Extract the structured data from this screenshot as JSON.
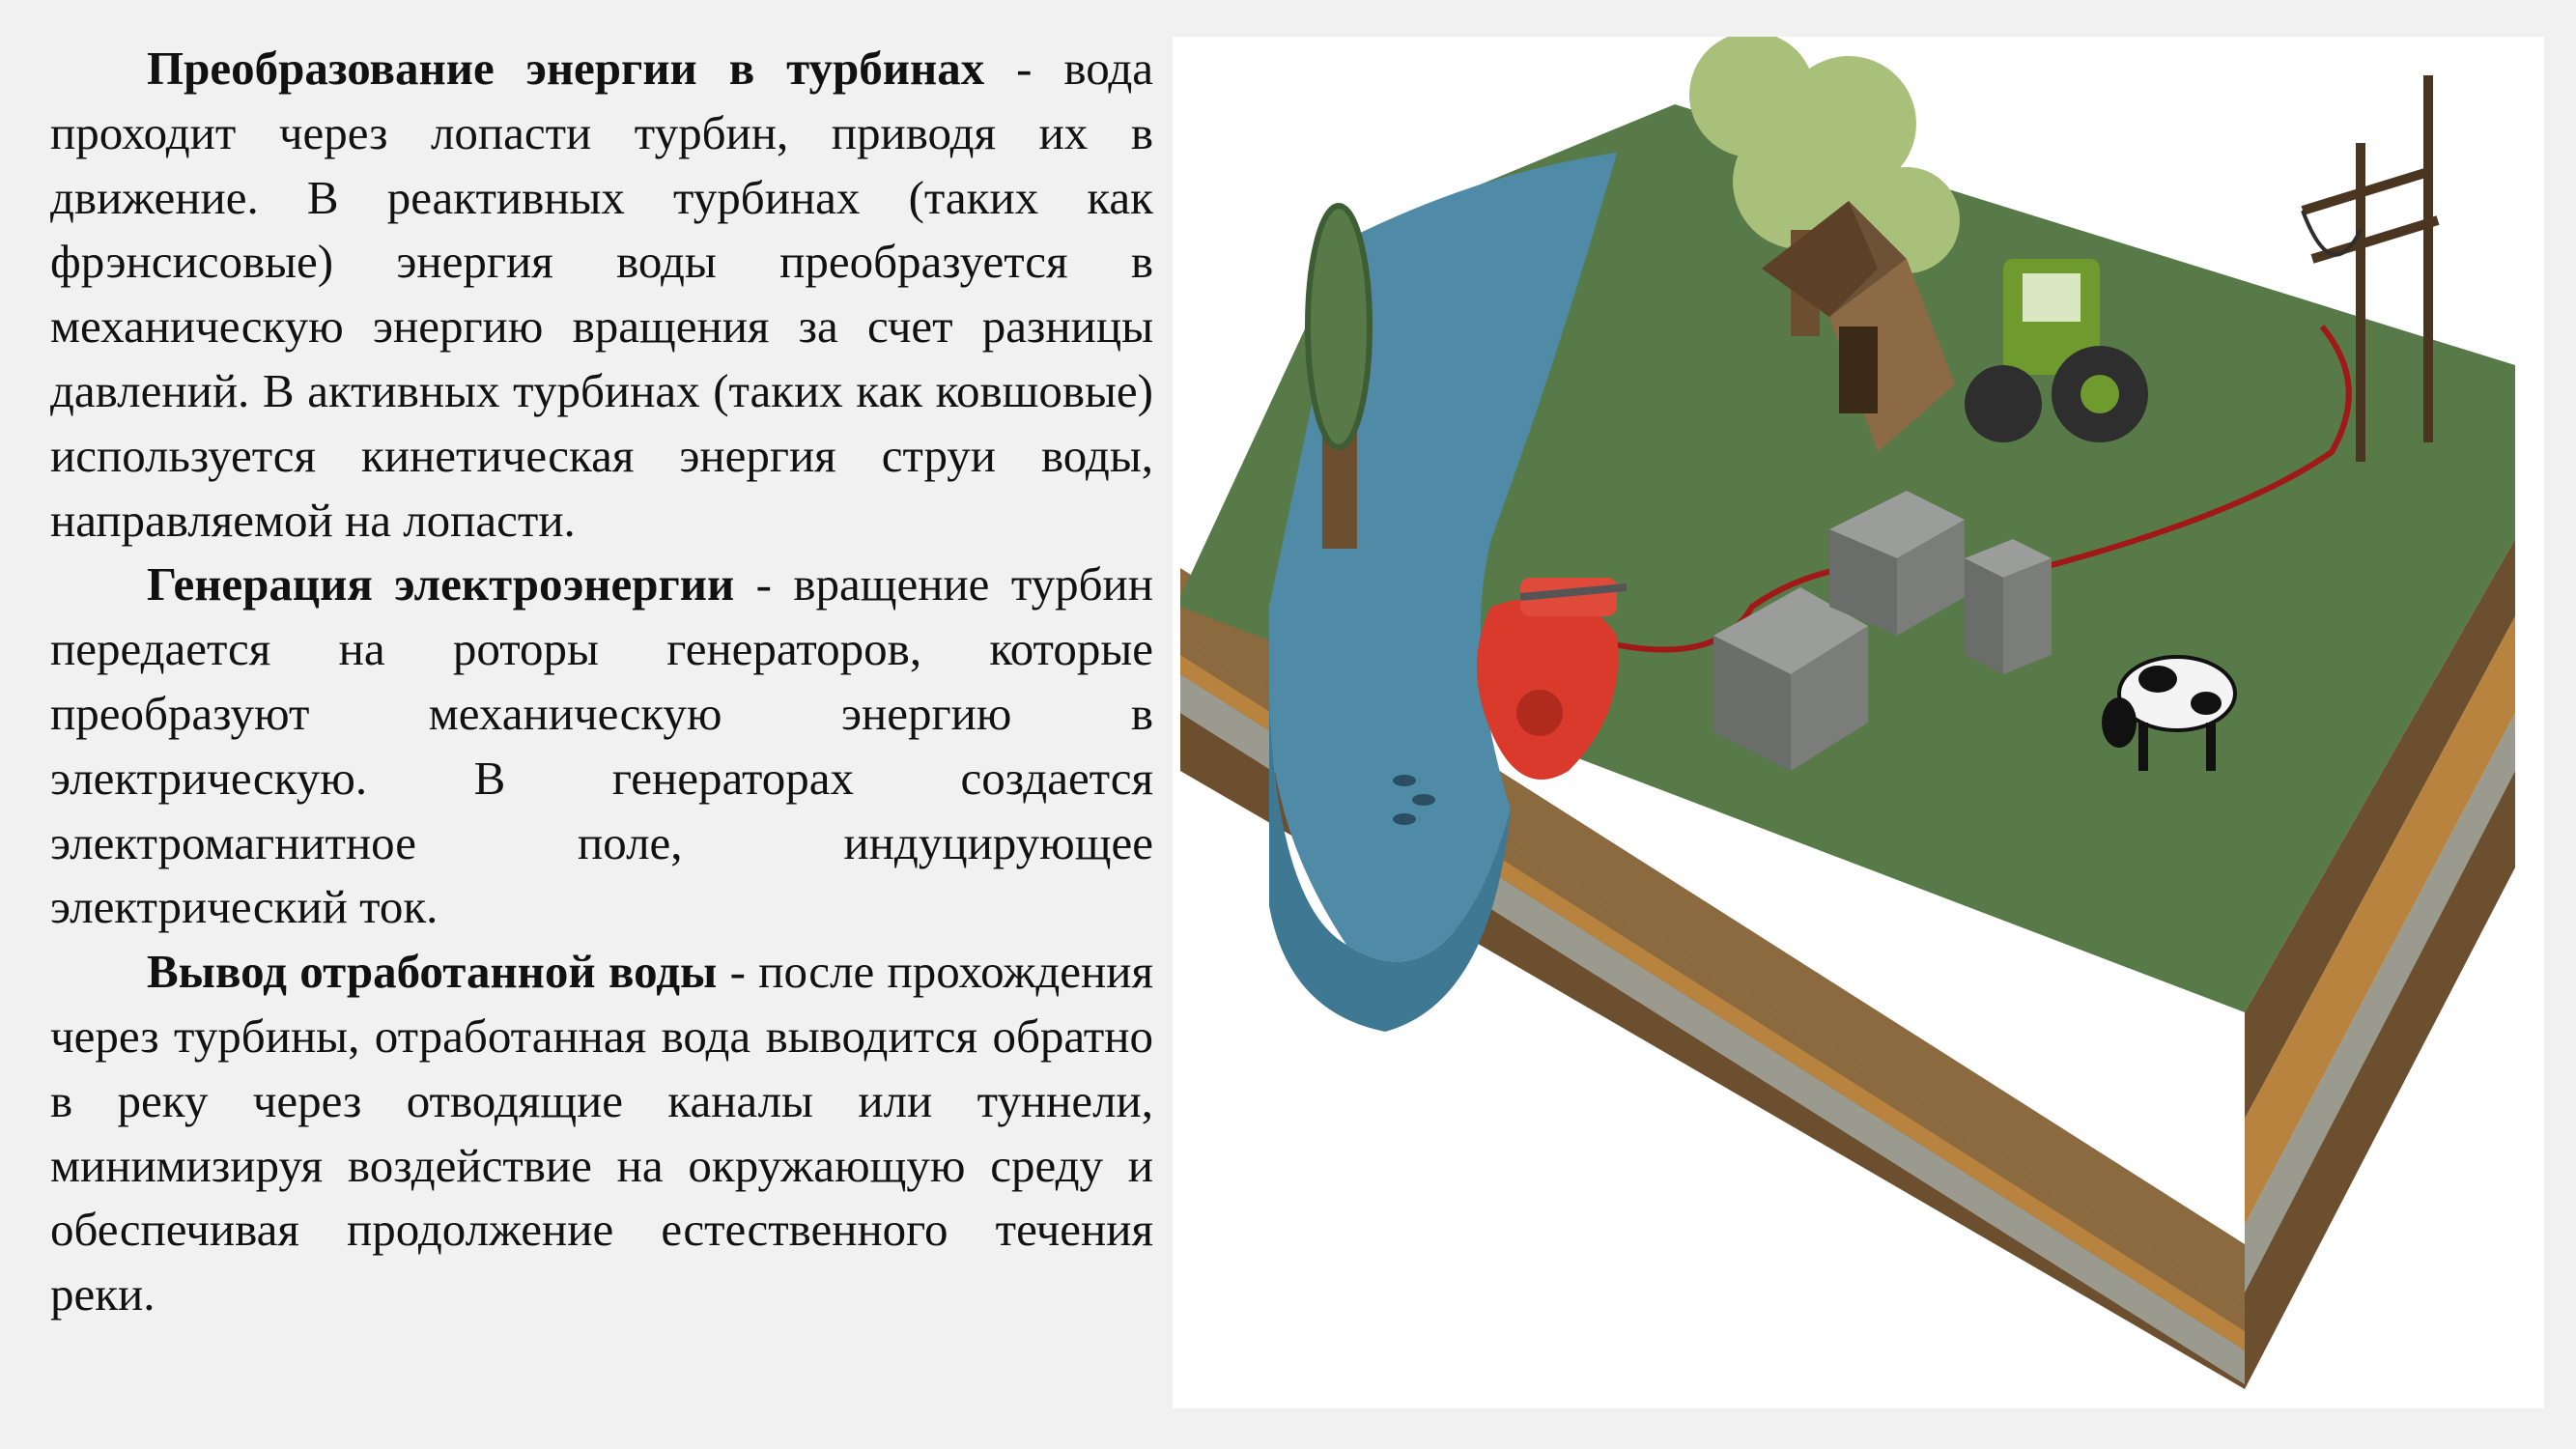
{
  "paragraphs": [
    {
      "heading": "Преобразование энергии в турбинах",
      "body": " - вода проходит через лопасти турбин, приводя их в движение. В реактивных турбинах (таких как фрэнсисовые) энергия воды преобразуется в механическую энергию вращения за счет разницы давлений. В активных турбинах (таких как ковшовые) используется кинетическая энергия струи воды, направляемой на лопасти."
    },
    {
      "heading": "Генерация электроэнергии",
      "body": " - вращение турбин передается на роторы генераторов, которые преобразуют механическую энергию в электрическую. В генераторах создается электромагнитное поле, индуцирующее электрический ток."
    },
    {
      "heading": "Вывод отработанной воды",
      "body": " - после прохождения через турбины, отработанная вода выводится обратно в реку через отводящие каналы или туннели, минимизируя воздействие на окружающую среду и обеспечивая продолжение естественного течения реки."
    }
  ],
  "illustration": {
    "colors": {
      "grass": "#587a48",
      "river": "#4f8aa6",
      "soil_top": "#8a6a3e",
      "soil_orange": "#b8823f",
      "soil_gray": "#9a9a8e",
      "soil_dark": "#6b4f2e",
      "turbine": "#d93a2b",
      "tractor": "#6f9a2e",
      "cable": "#a01818",
      "box": "#7a7d7a",
      "house": "#8b6a45",
      "tree": "#a9c07a"
    },
    "icons": [
      "river",
      "turbine",
      "generator-box",
      "battery",
      "house",
      "tractor",
      "cow",
      "tree",
      "power-pole"
    ]
  }
}
